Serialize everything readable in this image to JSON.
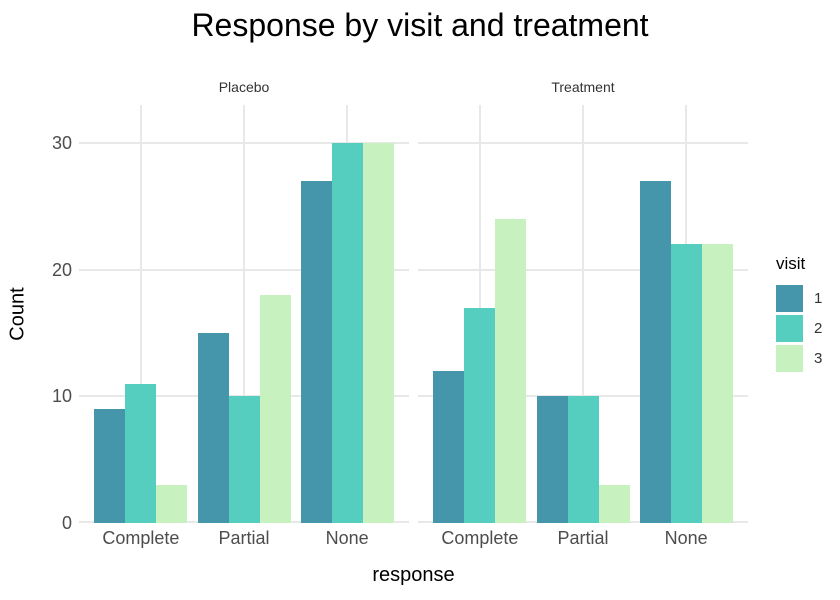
{
  "chart_data": {
    "type": "bar",
    "title": "Response by visit and treatment",
    "xlabel": "response",
    "ylabel": "Count",
    "categories": [
      "Complete",
      "Partial",
      "None"
    ],
    "facets": [
      {
        "label": "Placebo",
        "series": [
          {
            "name": "1",
            "values": [
              9,
              15,
              27
            ]
          },
          {
            "name": "2",
            "values": [
              11,
              10,
              30
            ]
          },
          {
            "name": "3",
            "values": [
              3,
              18,
              30
            ]
          }
        ]
      },
      {
        "label": "Treatment",
        "series": [
          {
            "name": "1",
            "values": [
              12,
              10,
              27
            ]
          },
          {
            "name": "2",
            "values": [
              17,
              10,
              22
            ]
          },
          {
            "name": "3",
            "values": [
              24,
              3,
              22
            ]
          }
        ]
      }
    ],
    "legend": {
      "title": "visit",
      "entries": [
        "1",
        "2",
        "3"
      ],
      "position": "right"
    },
    "colors": {
      "1": "#4596ab",
      "2": "#55cec0",
      "3": "#c7f2c0"
    },
    "yticks": [
      0,
      10,
      20,
      30
    ],
    "ylim": [
      0,
      33
    ],
    "grid": true,
    "grid_color": "#e8e8e8",
    "tick_text_color": "#4d4d4d"
  }
}
